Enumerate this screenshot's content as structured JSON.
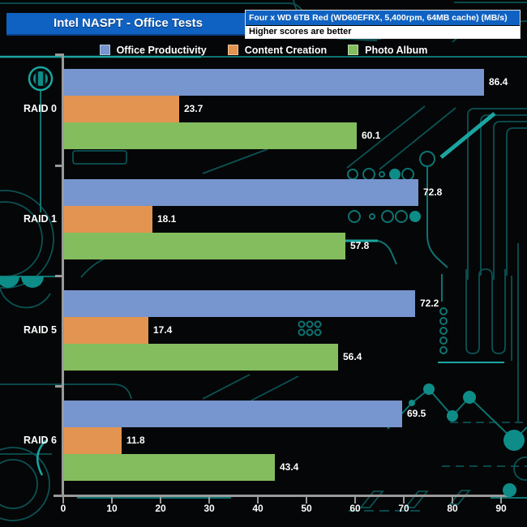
{
  "header": {
    "title": "Intel NASPT - Office Tests",
    "device_line": "Four x WD 6TB Red (WD60EFRX, 5,400rpm, 64MB cache) (MB/s)",
    "note_line": "Higher scores are better"
  },
  "chart_data": {
    "type": "bar",
    "orientation": "horizontal",
    "title": "Intel NASPT - Office Tests",
    "units": "MB/s",
    "categories": [
      "RAID 0",
      "RAID 1",
      "RAID 5",
      "RAID 6"
    ],
    "series": [
      {
        "name": "Office Productivity",
        "color": "#7795ce",
        "values": [
          86.4,
          72.8,
          72.2,
          69.5
        ]
      },
      {
        "name": "Content Creation",
        "color": "#e39450",
        "values": [
          23.7,
          18.1,
          17.4,
          11.8
        ]
      },
      {
        "name": "Photo Album",
        "color": "#84bd5e",
        "values": [
          60.1,
          57.8,
          56.4,
          43.4
        ]
      }
    ],
    "xlim": [
      0,
      90
    ],
    "x_ticks": [
      0,
      10,
      20,
      30,
      40,
      50,
      60,
      70,
      80,
      90
    ],
    "value_labels": true,
    "legend_position": "top",
    "grid": false
  },
  "colors": {
    "title_bar_blue": "#1062c2",
    "axis_gray": "#9a9a9a",
    "circuit_teal": "#0e7372",
    "circuit_teal_bright": "#1aa5a1",
    "circuit_fill": "#0e8c88",
    "background": "#050607",
    "label_text": "#ffffff"
  }
}
